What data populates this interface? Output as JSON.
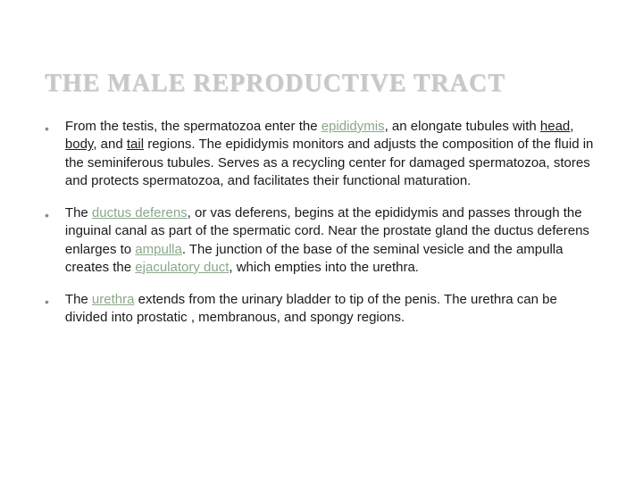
{
  "slide": {
    "title": "THE MALE REPRODUCTIVE TRACT",
    "title_color": "#c8c8c8",
    "title_fontsize": 28,
    "background_color": "#ffffff",
    "term_color": "#8aa88a",
    "body_color": "#1a1a1a",
    "body_fontsize": 15,
    "bullets": [
      {
        "parts": [
          {
            "t": "From the testis, the spermatozoa enter the "
          },
          {
            "t": "epididymis",
            "term": true,
            "u": true
          },
          {
            "t": ", an elongate tubules with "
          },
          {
            "t": "head",
            "u": true
          },
          {
            "t": ", "
          },
          {
            "t": "body",
            "u": true
          },
          {
            "t": ", and "
          },
          {
            "t": "tail",
            "u": true
          },
          {
            "t": " regions. The epididymis monitors and adjusts the composition of the fluid in the seminiferous tubules. Serves as a recycling center for damaged spermatozoa, stores and protects spermatozoa, and facilitates their functional maturation."
          }
        ]
      },
      {
        "parts": [
          {
            "t": "The "
          },
          {
            "t": "ductus deferens",
            "term": true,
            "u": true
          },
          {
            "t": ", or vas deferens, begins at the epididymis and passes through the inguinal canal as part of the spermatic cord. Near the prostate gland the ductus deferens enlarges to "
          },
          {
            "t": "ampulla",
            "term": true,
            "u": true
          },
          {
            "t": ". The junction of the base of the seminal vesicle and the ampulla creates the "
          },
          {
            "t": "ejaculatory duct",
            "term": true,
            "u": true
          },
          {
            "t": ", which empties into the urethra."
          }
        ]
      },
      {
        "parts": [
          {
            "t": "The "
          },
          {
            "t": "urethra",
            "term": true,
            "u": true
          },
          {
            "t": " extends from the urinary bladder to tip of the penis. The urethra can be divided into prostatic , membranous, and spongy regions."
          }
        ]
      }
    ]
  }
}
